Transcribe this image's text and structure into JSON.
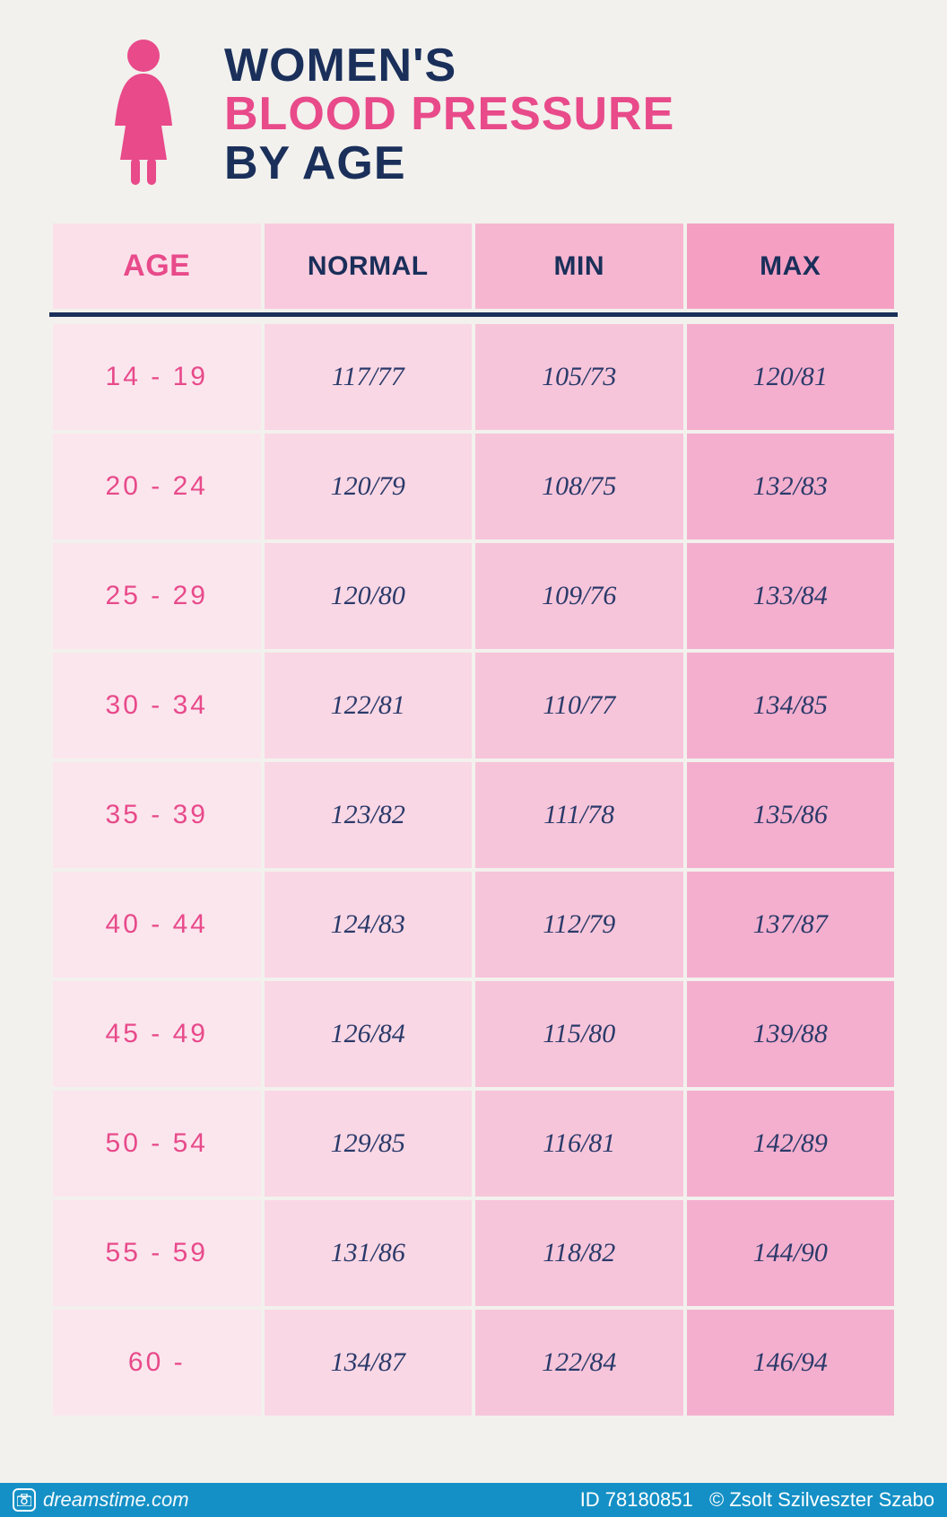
{
  "title": {
    "line1": "WOMEN'S",
    "line2": "BLOOD PRESSURE",
    "line3": "BY AGE",
    "color_dark": "#1a2f5a",
    "color_accent": "#e84a8a"
  },
  "icon_color": "#e84a8a",
  "table": {
    "columns": [
      "AGE",
      "NORMAL",
      "MIN",
      "MAX"
    ],
    "header_bg": [
      "#fbe0ea",
      "#f9cadd",
      "#f7b6d0",
      "#f5a0c3"
    ],
    "col_bg": [
      "#fbe6ee",
      "#fad7e5",
      "#f7c5da",
      "#f4afce"
    ],
    "rows": [
      {
        "age": "14 - 19",
        "normal": "117/77",
        "min": "105/73",
        "max": "120/81"
      },
      {
        "age": "20 - 24",
        "normal": "120/79",
        "min": "108/75",
        "max": "132/83"
      },
      {
        "age": "25 - 29",
        "normal": "120/80",
        "min": "109/76",
        "max": "133/84"
      },
      {
        "age": "30 - 34",
        "normal": "122/81",
        "min": "110/77",
        "max": "134/85"
      },
      {
        "age": "35 - 39",
        "normal": "123/82",
        "min": "111/78",
        "max": "135/86"
      },
      {
        "age": "40 - 44",
        "normal": "124/83",
        "min": "112/79",
        "max": "137/87"
      },
      {
        "age": "45 - 49",
        "normal": "126/84",
        "min": "115/80",
        "max": "139/88"
      },
      {
        "age": "50 - 54",
        "normal": "129/85",
        "min": "116/81",
        "max": "142/89"
      },
      {
        "age": "55 - 59",
        "normal": "131/86",
        "min": "118/82",
        "max": "144/90"
      },
      {
        "age": "60 -",
        "normal": "134/87",
        "min": "122/84",
        "max": "146/94"
      }
    ]
  },
  "footer": {
    "site": "dreamstime.com",
    "id_label": "ID 78180851",
    "author": "© Zsolt Szilveszter Szabo"
  },
  "background_color": "#f2f1ed"
}
